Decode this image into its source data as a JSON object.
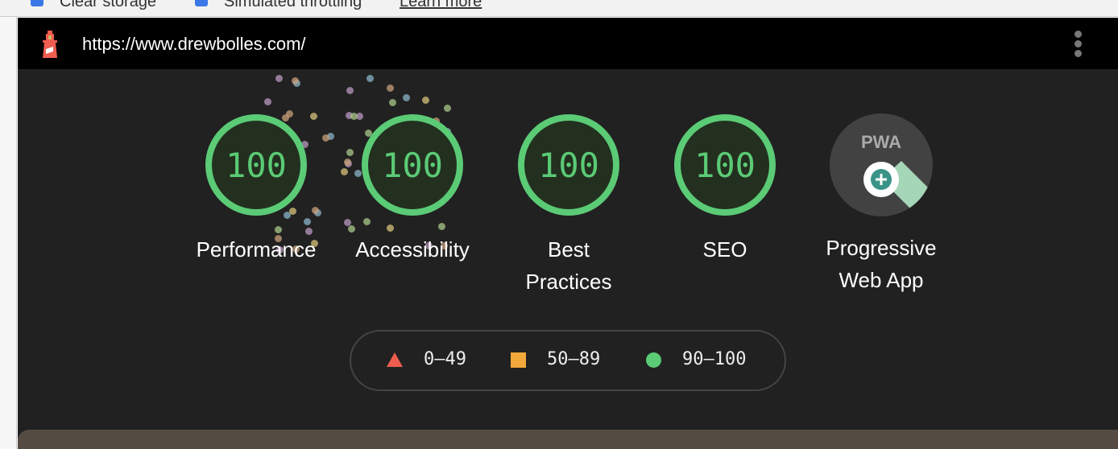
{
  "toolbar": {
    "clear_storage": "Clear storage",
    "simulated_throttling": "Simulated throttling",
    "learn_more": "Learn more"
  },
  "header": {
    "url": "https://www.drewbolles.com/",
    "logo": "lighthouse-icon",
    "menu": "more-vert-icon"
  },
  "gauges": [
    {
      "score": "100",
      "label": "Performance",
      "color": "#5bcb76"
    },
    {
      "score": "100",
      "label": "Accessibility",
      "color": "#5bcb76"
    },
    {
      "score": "100",
      "label": "Best Practices",
      "color": "#5bcb76"
    },
    {
      "score": "100",
      "label": "SEO",
      "color": "#5bcb76"
    }
  ],
  "pwa": {
    "badge_text": "PWA",
    "label": "Progressive Web App",
    "icon": "pwa-badge-icon"
  },
  "legend": [
    {
      "range": "0–49",
      "shape": "triangle",
      "color": "#ef5d50"
    },
    {
      "range": "50–89",
      "shape": "square",
      "color": "#f2a83a"
    },
    {
      "range": "90–100",
      "shape": "circle",
      "color": "#5bcb76"
    }
  ]
}
